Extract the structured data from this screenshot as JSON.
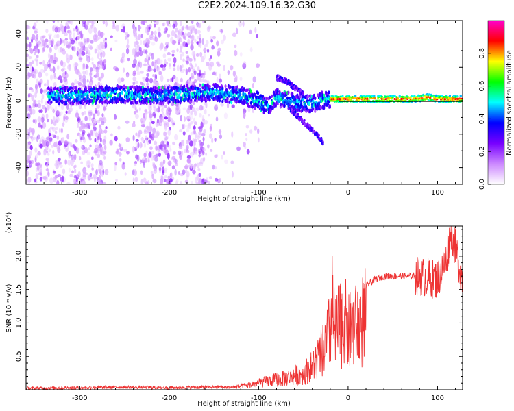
{
  "title": "C2E2.2024.109.16.32.G30",
  "chart_data": [
    {
      "type": "heatmap",
      "title": "C2E2.2024.109.16.32.G30",
      "xlabel": "Height of straight line (km)",
      "ylabel": "Frequency (Hz)",
      "xlim": [
        -360,
        128
      ],
      "ylim": [
        -50,
        48
      ],
      "x_ticks": [
        -300,
        -200,
        -100,
        0,
        100
      ],
      "y_ticks": [
        -40,
        -20,
        0,
        20,
        40
      ],
      "colorbar": {
        "label": "Normalized spectral amplitude",
        "range": [
          0.0,
          1.0
        ],
        "ticks": [
          0.0,
          0.2,
          0.4,
          0.6,
          0.8
        ],
        "colormap": [
          "#ffffff",
          "#cc88ff",
          "#7700ff",
          "#0000ff",
          "#00ffff",
          "#00ff00",
          "#ffff00",
          "#ff0000",
          "#ff00cc"
        ]
      },
      "dominant_frequency_trace": {
        "x": [
          -330,
          -300,
          -260,
          -220,
          -180,
          -150,
          -120,
          -100,
          -90,
          -80,
          -60,
          -40,
          -30,
          -20,
          0,
          40,
          70,
          90,
          100,
          128
        ],
        "y": [
          3,
          3,
          4,
          3,
          4,
          5,
          3,
          0,
          -4,
          2,
          -1,
          -2,
          0,
          1,
          1,
          1,
          1,
          2,
          1,
          1
        ]
      },
      "secondary_branches": [
        {
          "x": [
            -80,
            -70,
            -60,
            -50
          ],
          "y": [
            14,
            12,
            8,
            4
          ]
        },
        {
          "x": [
            -65,
            -55,
            -45,
            -35,
            -28
          ],
          "y": [
            -5,
            -10,
            -15,
            -20,
            -25
          ]
        }
      ]
    },
    {
      "type": "line",
      "xlabel": "Height of straight line (km)",
      "ylabel": "SNR (10 * v/v)",
      "scale_label": "(x10⁴)",
      "xlim": [
        -360,
        128
      ],
      "ylim": [
        0,
        2.45
      ],
      "x_ticks": [
        -300,
        -200,
        -100,
        0,
        100
      ],
      "y_ticks": [
        0.5,
        1.0,
        1.5,
        2.0
      ],
      "line_color": "#ee3333",
      "series": [
        {
          "name": "SNR",
          "x": [
            -360,
            -300,
            -250,
            -200,
            -150,
            -130,
            -110,
            -90,
            -70,
            -50,
            -40,
            -30,
            -25,
            -20,
            -18,
            -15,
            -10,
            -5,
            0,
            10,
            20,
            30,
            40,
            60,
            80,
            100,
            110,
            115,
            128
          ],
          "y": [
            0.02,
            0.03,
            0.04,
            0.03,
            0.04,
            0.05,
            0.1,
            0.18,
            0.25,
            0.35,
            0.5,
            0.75,
            0.95,
            1.25,
            1.9,
            1.15,
            1.35,
            1.55,
            1.2,
            1.35,
            1.55,
            1.65,
            1.7,
            1.7,
            1.7,
            1.65,
            1.95,
            2.4,
            1.65
          ]
        }
      ]
    }
  ]
}
